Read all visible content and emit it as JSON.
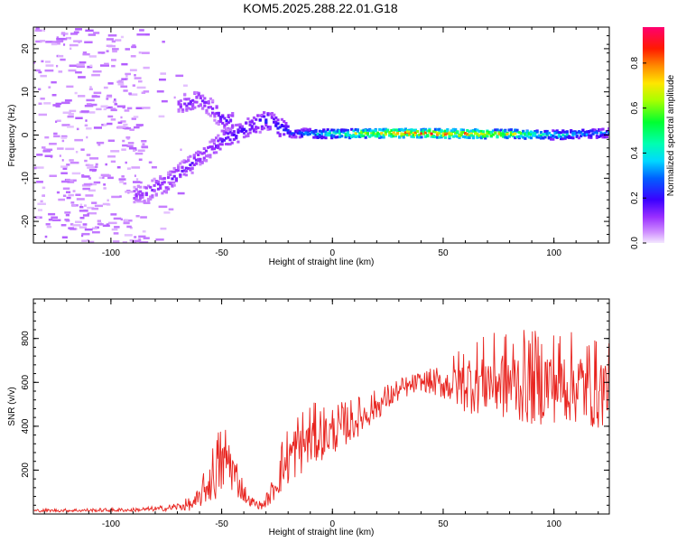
{
  "figure": {
    "title": "KOM5.2025.288.22.01.G18"
  },
  "chart_data": [
    {
      "type": "heatmap",
      "xlabel": "Height of straight line (km)",
      "ylabel": "Frequency (Hz)",
      "xlim": [
        -135,
        125
      ],
      "ylim": [
        -25,
        25
      ],
      "xticks": [
        -100,
        -50,
        0,
        50,
        100
      ],
      "xtick_labels": [
        "-100",
        "-50",
        "0",
        "50",
        "100"
      ],
      "yticks": [
        -20,
        -10,
        0,
        10,
        20
      ],
      "ytick_labels": [
        "-20",
        "-10",
        "0",
        "10",
        "20"
      ],
      "colorbar": {
        "label": "Normalized spectral amplitude",
        "range": [
          0,
          0.96
        ],
        "ticks": [
          0,
          0.2,
          0.4,
          0.6,
          0.8
        ],
        "tick_labels": [
          "0.0",
          "0.2",
          "0.4",
          "0.6",
          "0.8"
        ]
      },
      "trace": [
        {
          "x": -90,
          "y": -14,
          "a": 0.12
        },
        {
          "x": -85,
          "y": -13.5,
          "a": 0.14
        },
        {
          "x": -80,
          "y": -12,
          "a": 0.15
        },
        {
          "x": -75,
          "y": -11,
          "a": 0.16
        },
        {
          "x": -70,
          "y": -9,
          "a": 0.18
        },
        {
          "x": -65,
          "y": -7,
          "a": 0.16
        },
        {
          "x": -60,
          "y": -5,
          "a": 0.14
        },
        {
          "x": -55,
          "y": -3,
          "a": 0.15
        },
        {
          "x": -50,
          "y": -1,
          "a": 0.2
        },
        {
          "x": -45,
          "y": 0,
          "a": 0.22
        },
        {
          "x": -40,
          "y": 1.5,
          "a": 0.2
        },
        {
          "x": -35,
          "y": 2.5,
          "a": 0.22
        },
        {
          "x": -30,
          "y": 3.5,
          "a": 0.24
        },
        {
          "x": -25,
          "y": 2,
          "a": 0.25
        },
        {
          "x": -20,
          "y": 0.5,
          "a": 0.28
        },
        {
          "x": -15,
          "y": 0.5,
          "a": 0.32
        },
        {
          "x": -10,
          "y": 0.3,
          "a": 0.4
        },
        {
          "x": -5,
          "y": 0.3,
          "a": 0.45
        },
        {
          "x": 0,
          "y": 0.3,
          "a": 0.55
        },
        {
          "x": 10,
          "y": 0.3,
          "a": 0.7
        },
        {
          "x": 20,
          "y": 0.4,
          "a": 0.85
        },
        {
          "x": 30,
          "y": 0.4,
          "a": 0.92
        },
        {
          "x": 40,
          "y": 0.4,
          "a": 0.9
        },
        {
          "x": 50,
          "y": 0.3,
          "a": 0.88
        },
        {
          "x": 60,
          "y": 0.3,
          "a": 0.85
        },
        {
          "x": 70,
          "y": 0.2,
          "a": 0.8
        },
        {
          "x": 80,
          "y": 0.3,
          "a": 0.75
        },
        {
          "x": 90,
          "y": 0.1,
          "a": 0.6
        },
        {
          "x": 100,
          "y": 0,
          "a": 0.45
        },
        {
          "x": 110,
          "y": 0.2,
          "a": 0.4
        },
        {
          "x": 120,
          "y": 0.4,
          "a": 0.35
        },
        {
          "x": 125,
          "y": 0.5,
          "a": 0.35
        }
      ],
      "branch": [
        {
          "x": -70,
          "y": 7,
          "a": 0.14
        },
        {
          "x": -65,
          "y": 7.5,
          "a": 0.16
        },
        {
          "x": -60,
          "y": 8.5,
          "a": 0.15
        },
        {
          "x": -55,
          "y": 6,
          "a": 0.15
        },
        {
          "x": -50,
          "y": 3.5,
          "a": 0.2
        },
        {
          "x": -45,
          "y": 3,
          "a": 0.18
        }
      ]
    },
    {
      "type": "line",
      "xlabel": "Height of straight line (km)",
      "ylabel": "SNR (v/v)",
      "xlim": [
        -135,
        125
      ],
      "ylim": [
        0,
        980
      ],
      "xticks": [
        -100,
        -50,
        0,
        50,
        100
      ],
      "xtick_labels": [
        "-100",
        "-50",
        "0",
        "50",
        "100"
      ],
      "yticks": [
        200,
        400,
        600,
        800
      ],
      "ytick_labels": [
        "200",
        "400",
        "600",
        "800"
      ],
      "color": "#e8231e",
      "envelope": [
        {
          "x": -135,
          "base": 15,
          "amp": 8
        },
        {
          "x": -90,
          "base": 18,
          "amp": 10
        },
        {
          "x": -75,
          "base": 25,
          "amp": 15
        },
        {
          "x": -62,
          "base": 45,
          "amp": 40
        },
        {
          "x": -57,
          "base": 120,
          "amp": 100
        },
        {
          "x": -52,
          "base": 200,
          "amp": 190
        },
        {
          "x": -47,
          "base": 250,
          "amp": 180
        },
        {
          "x": -43,
          "base": 150,
          "amp": 100
        },
        {
          "x": -38,
          "base": 60,
          "amp": 30
        },
        {
          "x": -32,
          "base": 35,
          "amp": 20
        },
        {
          "x": -28,
          "base": 80,
          "amp": 50
        },
        {
          "x": -23,
          "base": 200,
          "amp": 140
        },
        {
          "x": -18,
          "base": 280,
          "amp": 180
        },
        {
          "x": -10,
          "base": 340,
          "amp": 170
        },
        {
          "x": 0,
          "base": 370,
          "amp": 130
        },
        {
          "x": 10,
          "base": 420,
          "amp": 110
        },
        {
          "x": 20,
          "base": 490,
          "amp": 80
        },
        {
          "x": 30,
          "base": 560,
          "amp": 60
        },
        {
          "x": 40,
          "base": 600,
          "amp": 50
        },
        {
          "x": 50,
          "base": 590,
          "amp": 90
        },
        {
          "x": 60,
          "base": 600,
          "amp": 190
        },
        {
          "x": 70,
          "base": 610,
          "amp": 210
        },
        {
          "x": 80,
          "base": 600,
          "amp": 240
        },
        {
          "x": 90,
          "base": 590,
          "amp": 250
        },
        {
          "x": 100,
          "base": 600,
          "amp": 250
        },
        {
          "x": 110,
          "base": 590,
          "amp": 240
        },
        {
          "x": 120,
          "base": 560,
          "amp": 240
        },
        {
          "x": 125,
          "base": 580,
          "amp": 200
        }
      ]
    }
  ]
}
